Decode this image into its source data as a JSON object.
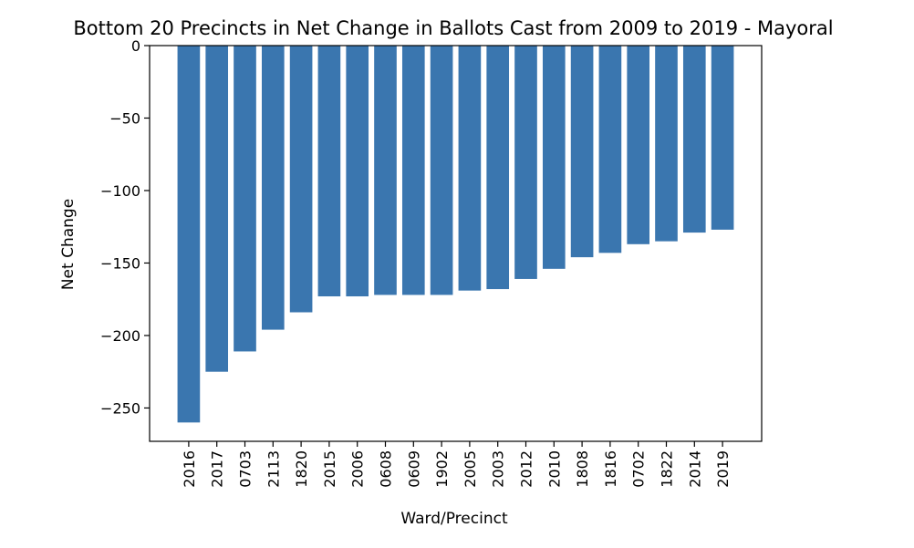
{
  "chart_data": {
    "type": "bar",
    "title": "Bottom 20 Precincts in Net Change in Ballots Cast from 2009 to 2019 - Mayoral",
    "xlabel": "Ward/Precinct",
    "ylabel": "Net Change",
    "categories": [
      "2016",
      "2017",
      "0703",
      "2113",
      "1820",
      "2015",
      "2006",
      "0608",
      "0609",
      "1902",
      "2005",
      "2003",
      "2012",
      "2010",
      "1808",
      "1816",
      "0702",
      "1822",
      "2014",
      "2019"
    ],
    "values": [
      -260,
      -225,
      -211,
      -196,
      -184,
      -173,
      -173,
      -172,
      -172,
      -172,
      -169,
      -168,
      -161,
      -154,
      -146,
      -143,
      -137,
      -135,
      -129,
      -127
    ],
    "ylim": [
      -273,
      0
    ],
    "yticks": [
      0,
      -50,
      -100,
      -150,
      -200,
      -250
    ],
    "ytick_labels": [
      "0",
      "−50",
      "−100",
      "−150",
      "−200",
      "−250"
    ],
    "grid": false,
    "bar_color": "#3a76af"
  }
}
